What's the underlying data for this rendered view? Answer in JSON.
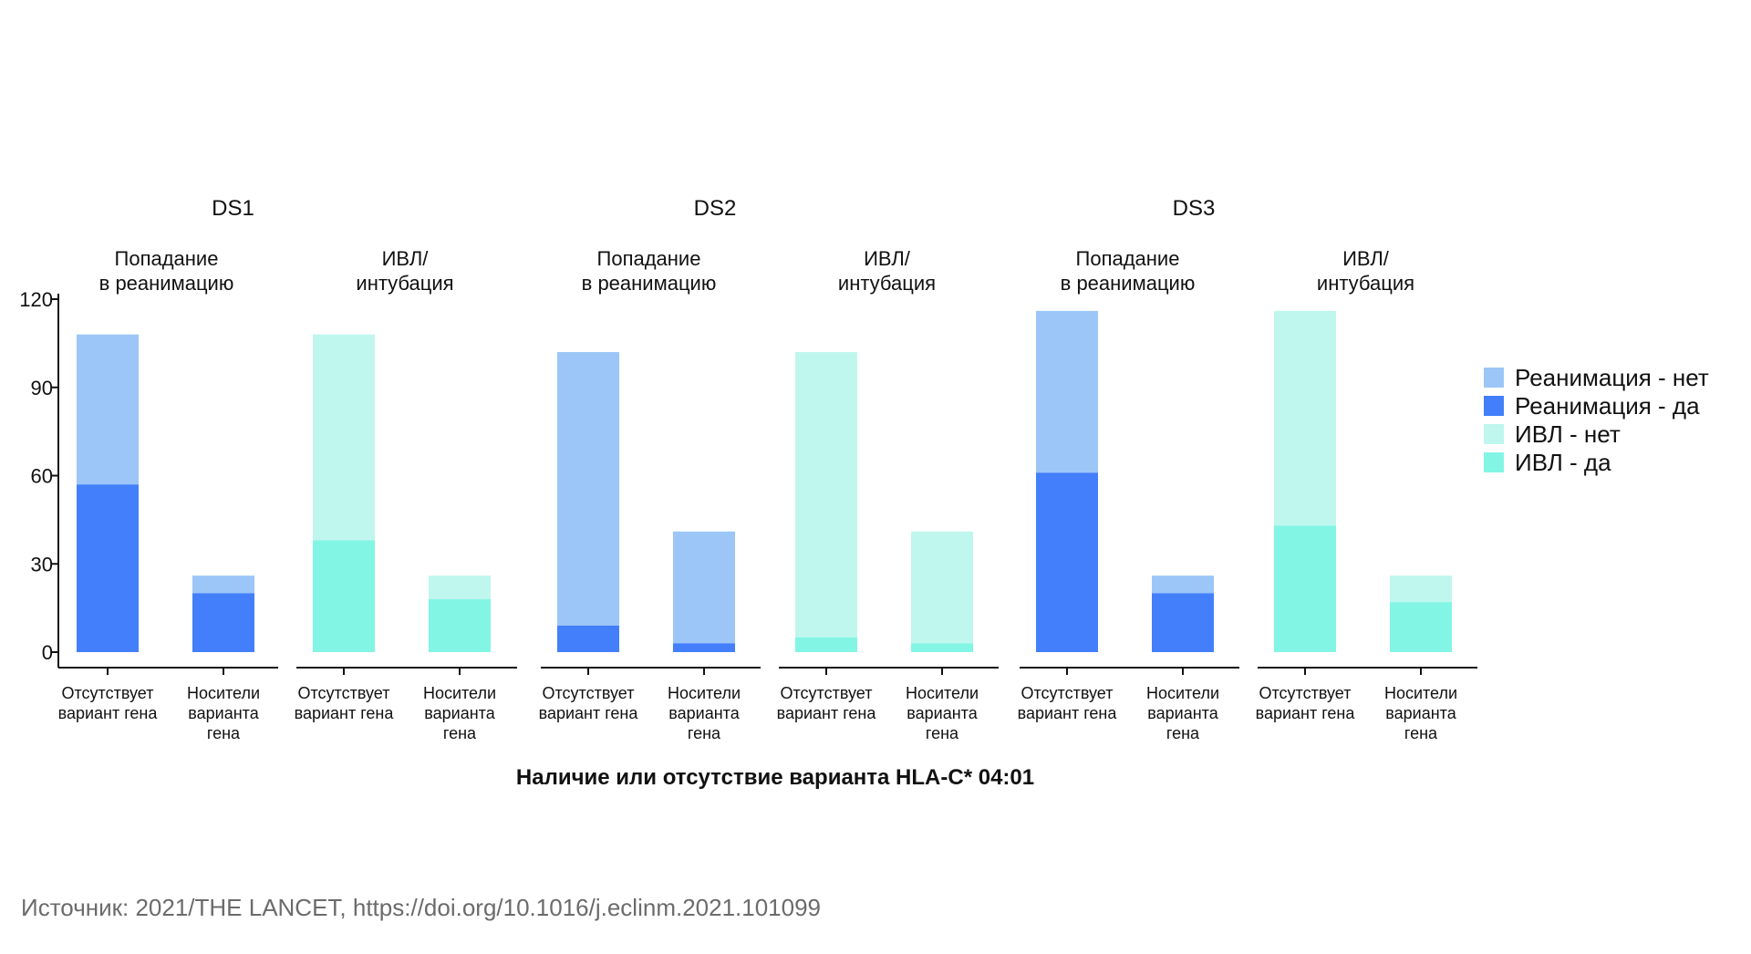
{
  "chart_data": {
    "type": "bar",
    "stacked": true,
    "ylim": [
      0,
      120
    ],
    "yticks": [
      0,
      30,
      60,
      90,
      120
    ],
    "xlabel": "Наличие или отсутствие варианта HLA-C* 04:01",
    "categories": [
      [
        "Отсутствует",
        "вариант гена"
      ],
      [
        "Носители",
        "варианта",
        "гена"
      ]
    ],
    "colors": {
      "reanimation_no": "#9cc6f7",
      "reanimation_yes": "#437ffb",
      "ivl_no": "#bff6ee",
      "ivl_yes": "#83f5e5"
    },
    "legend": [
      {
        "key": "reanimation_no",
        "label": "Реанимация - нет"
      },
      {
        "key": "reanimation_yes",
        "label": "Реанимация - да"
      },
      {
        "key": "ivl_no",
        "label": "ИВЛ - нет"
      },
      {
        "key": "ivl_yes",
        "label": "ИВЛ - да"
      }
    ],
    "datasets": [
      {
        "name": "DS1",
        "panels": [
          {
            "title": [
              "Попадание",
              "в реанимацию"
            ],
            "no_key": "reanimation_no",
            "yes_key": "reanimation_yes",
            "totals": [
              108,
              26
            ],
            "yes": [
              57,
              20
            ]
          },
          {
            "title": [
              "ИВЛ/",
              "интубация"
            ],
            "no_key": "ivl_no",
            "yes_key": "ivl_yes",
            "totals": [
              108,
              26
            ],
            "yes": [
              38,
              18
            ]
          }
        ]
      },
      {
        "name": "DS2",
        "panels": [
          {
            "title": [
              "Попадание",
              "в реанимацию"
            ],
            "no_key": "reanimation_no",
            "yes_key": "reanimation_yes",
            "totals": [
              102,
              41
            ],
            "yes": [
              9,
              3
            ]
          },
          {
            "title": [
              "ИВЛ/",
              "интубация"
            ],
            "no_key": "ivl_no",
            "yes_key": "ivl_yes",
            "totals": [
              102,
              41
            ],
            "yes": [
              5,
              3
            ]
          }
        ]
      },
      {
        "name": "DS3",
        "panels": [
          {
            "title": [
              "Попадание",
              "в реанимацию"
            ],
            "no_key": "reanimation_no",
            "yes_key": "reanimation_yes",
            "totals": [
              116,
              26
            ],
            "yes": [
              61,
              20
            ]
          },
          {
            "title": [
              "ИВЛ/",
              "интубация"
            ],
            "no_key": "ivl_no",
            "yes_key": "ivl_yes",
            "totals": [
              116,
              26
            ],
            "yes": [
              43,
              17
            ]
          }
        ]
      }
    ]
  },
  "source": "Источник: 2021/THE LANCET, https://doi.org/10.1016/j.eclinm.2021.101099"
}
